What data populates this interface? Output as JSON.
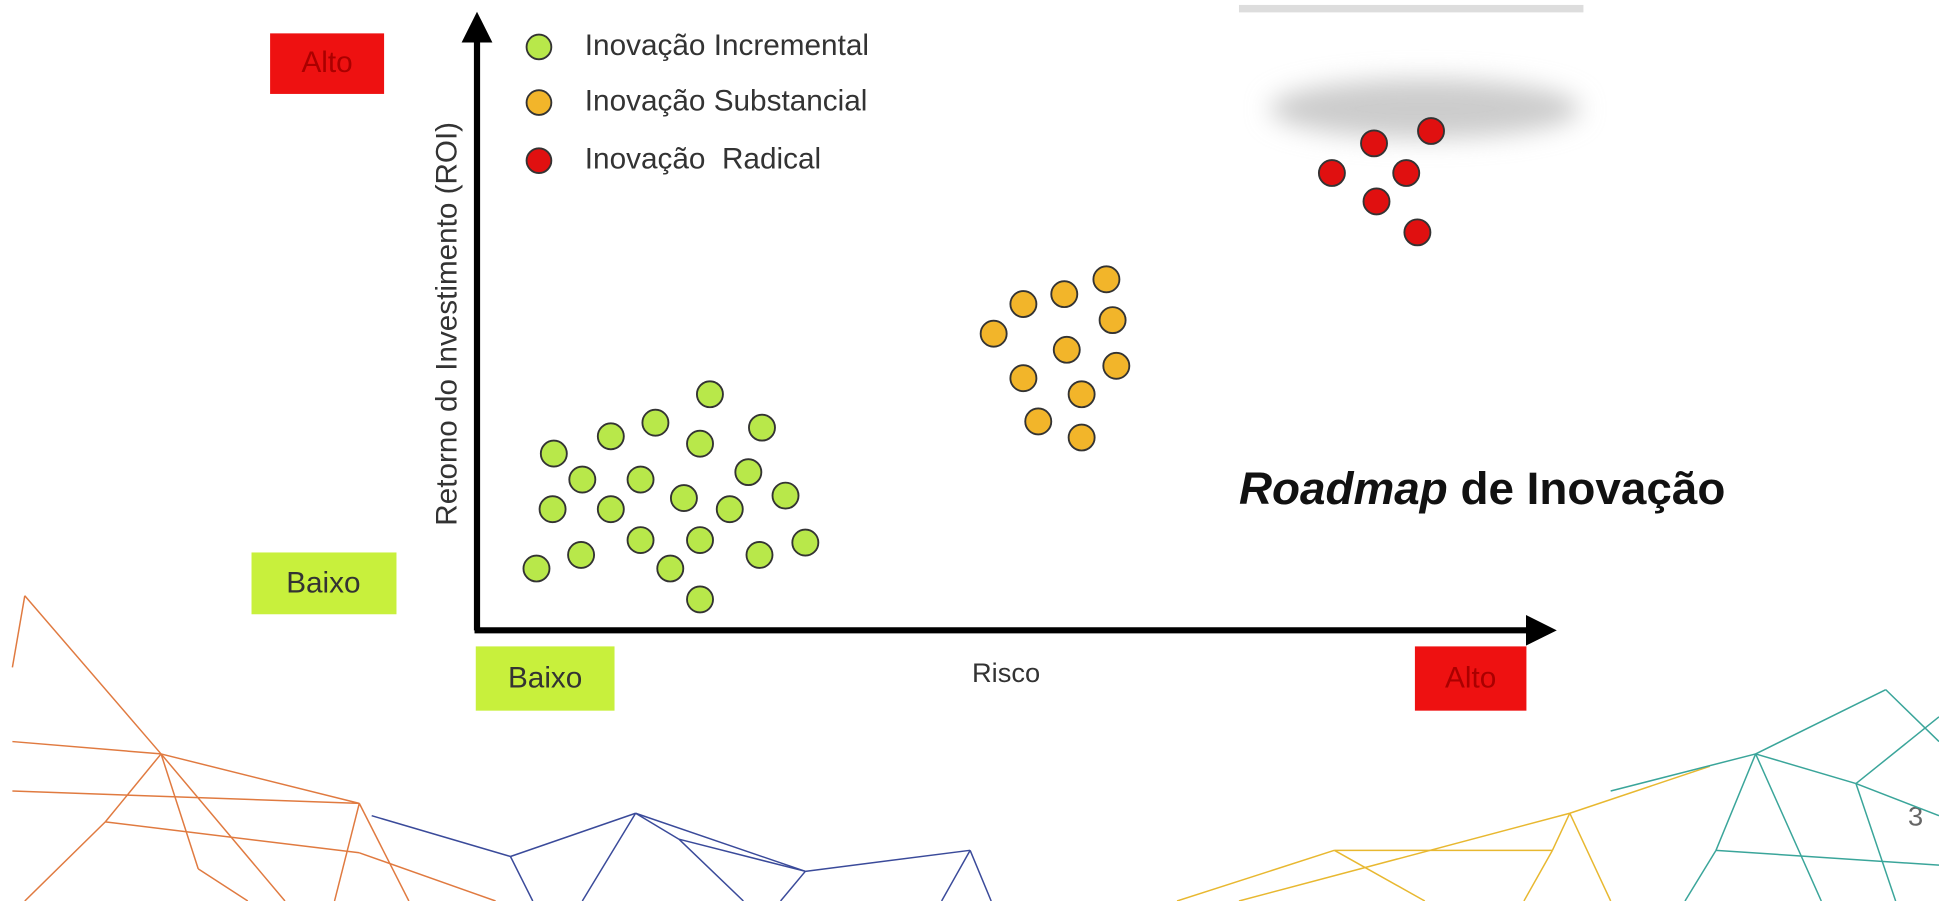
{
  "diagram": {
    "y_axis": {
      "label": "Retorno do Investimento (ROI)",
      "low": "Baixo",
      "high": "Alto"
    },
    "x_axis": {
      "label": "Risco",
      "low": "Baixo",
      "high": "Alto"
    },
    "legend": [
      "Inovação Incremental",
      "Inovação Substancial",
      "Inovação  Radical"
    ]
  },
  "title": {
    "italic": "Roadmap",
    "rest": "de Inovação"
  },
  "page_number": "3"
}
